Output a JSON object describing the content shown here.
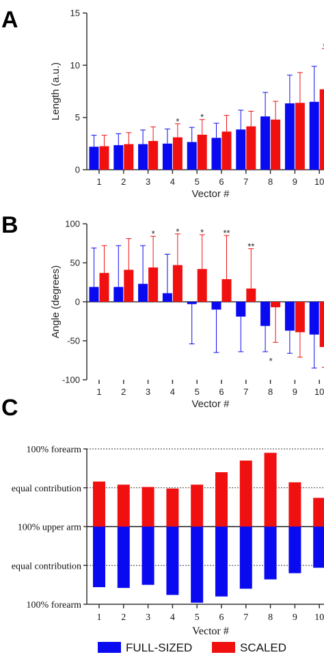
{
  "colors": {
    "full_sized": "#0a0af0",
    "scaled": "#f01010",
    "axis": "#333333"
  },
  "panels": {
    "a": "A",
    "b": "B",
    "c": "C"
  },
  "legend": {
    "full_sized": "FULL-SIZED",
    "scaled": "SCALED"
  },
  "chart_data": [
    {
      "panel": "A",
      "type": "bar",
      "ylabel": "Length (a.u.)",
      "xlabel": "Vector #",
      "categories": [
        "1",
        "2",
        "3",
        "4",
        "5",
        "6",
        "7",
        "8",
        "9",
        "10"
      ],
      "ylim": [
        0,
        15
      ],
      "yticks": [
        "0",
        "5",
        "10",
        "15"
      ],
      "series": [
        {
          "name": "FULL-SIZED",
          "values": [
            2.2,
            2.35,
            2.45,
            2.5,
            2.65,
            3.05,
            3.85,
            5.1,
            6.35,
            6.5
          ],
          "err": [
            1.1,
            1.1,
            1.35,
            1.4,
            1.4,
            1.4,
            1.85,
            2.3,
            2.7,
            3.4
          ]
        },
        {
          "name": "SCALED",
          "values": [
            2.25,
            2.45,
            2.75,
            3.1,
            3.35,
            3.65,
            4.15,
            4.8,
            6.4,
            7.7
          ],
          "err": [
            1.05,
            1.1,
            1.35,
            1.3,
            1.45,
            1.55,
            1.45,
            1.75,
            2.9,
            3.9
          ]
        }
      ],
      "annotations": [
        {
          "category": "4",
          "text": "*"
        },
        {
          "category": "5",
          "text": "*"
        },
        {
          "category": "10",
          "text": "*"
        }
      ]
    },
    {
      "panel": "B",
      "type": "bar",
      "ylabel": "Angle (degrees)",
      "xlabel": "Vector #",
      "categories": [
        "1",
        "2",
        "3",
        "4",
        "5",
        "6",
        "7",
        "8",
        "9",
        "10"
      ],
      "ylim": [
        -100,
        100
      ],
      "yticks": [
        "100",
        "50",
        "0",
        "-50",
        "-100"
      ],
      "series": [
        {
          "name": "FULL-SIZED",
          "values": [
            19,
            19,
            23,
            11,
            -3,
            -10,
            -19,
            -31,
            -37,
            -42
          ],
          "err": [
            50,
            53,
            49,
            50,
            51,
            55,
            45,
            33,
            29,
            43
          ]
        },
        {
          "name": "SCALED",
          "values": [
            37,
            41,
            44,
            47,
            42,
            29,
            17,
            -7,
            -39,
            -58
          ],
          "err": [
            35,
            40,
            40,
            40,
            44,
            56,
            51,
            45,
            32,
            26
          ]
        }
      ],
      "annotations": [
        {
          "category": "3",
          "text": "*"
        },
        {
          "category": "4",
          "text": "*"
        },
        {
          "category": "5",
          "text": "*"
        },
        {
          "category": "6",
          "text": "**"
        },
        {
          "category": "7",
          "text": "**"
        },
        {
          "category": "8",
          "text": "*"
        }
      ]
    },
    {
      "panel": "C",
      "type": "bar",
      "xlabel": "Vector #",
      "categories": [
        "1",
        "2",
        "3",
        "4",
        "5",
        "6",
        "7",
        "8",
        "9",
        "10"
      ],
      "ylim": [
        -1,
        1
      ],
      "ytick_labels": [
        "100% forearm",
        "equal contribution",
        "100% upper arm",
        "equal contribution",
        "100% forearm"
      ],
      "series": [
        {
          "name": "SCALED",
          "values": [
            0.58,
            0.54,
            0.51,
            0.49,
            0.54,
            0.7,
            0.85,
            0.95,
            0.57,
            0.37
          ]
        },
        {
          "name": "FULL-SIZED",
          "values": [
            -0.78,
            -0.79,
            -0.75,
            -0.88,
            -0.98,
            -0.9,
            -0.8,
            -0.68,
            -0.6,
            -0.53
          ]
        }
      ]
    }
  ]
}
